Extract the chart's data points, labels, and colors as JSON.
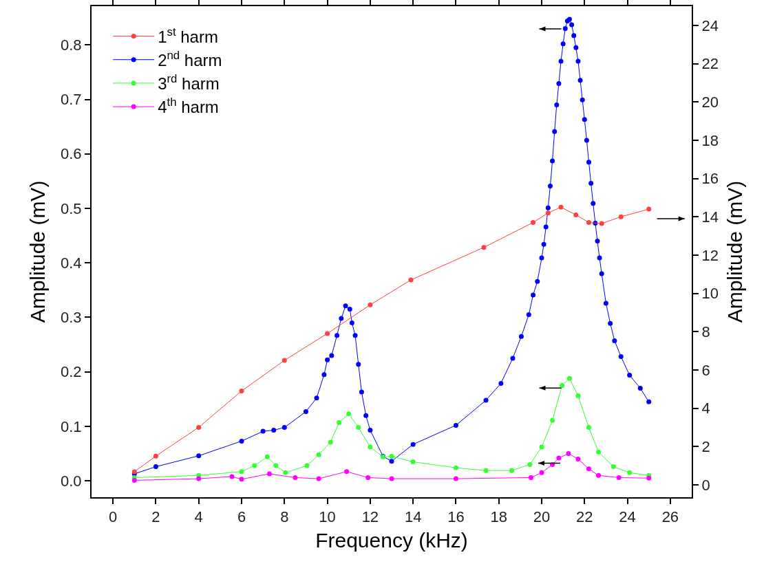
{
  "chart_data": {
    "type": "line",
    "xlabel": "Frequency (kHz)",
    "ylabel": "Amplitude (mV)",
    "y2label": "Amplitude (mV)",
    "xlim": [
      -1,
      27
    ],
    "xticks": [
      0,
      2,
      4,
      6,
      8,
      10,
      12,
      14,
      16,
      18,
      20,
      22,
      24,
      26
    ],
    "ylim": [
      -0.03,
      0.871
    ],
    "yticks": [
      {
        "value": 0,
        "label": "0.0"
      },
      0.1,
      0.2,
      0.3,
      0.4,
      0.5,
      0.6,
      0.7,
      0.8
    ],
    "y2lim": [
      -0.65,
      25.0
    ],
    "y2ticks": [
      0,
      2,
      4,
      6,
      8,
      10,
      12,
      14,
      16,
      18,
      20,
      22,
      24
    ],
    "grid": false,
    "legend": "top left",
    "marker": "circle",
    "line_style": "solid",
    "series": [
      {
        "name": "1$^{st}$ harm",
        "color": "#ff4040",
        "axis": "y2",
        "x": [
          1,
          2,
          4,
          6,
          8,
          10,
          12,
          13.9,
          17.3,
          19.6,
          20.3,
          20.9,
          21.6,
          22.2,
          22.8,
          23.7,
          25
        ],
        "values": [
          0.68,
          1.5,
          3.0,
          4.9,
          6.5,
          7.9,
          9.4,
          10.7,
          12.4,
          13.7,
          14.2,
          14.5,
          14.1,
          13.7,
          13.65,
          14.0,
          14.4
        ]
      },
      {
        "name": "2$^{nd}$ harm",
        "color": "#0000ff",
        "x": [
          1,
          2,
          4,
          6,
          7,
          7.5,
          8,
          9,
          9.5,
          9.85,
          10,
          10.2,
          10.45,
          10.65,
          10.85,
          11.05,
          11.15,
          11.3,
          11.45,
          11.6,
          11.8,
          12,
          12.6,
          13,
          14,
          16,
          17.4,
          18.1,
          18.65,
          19.05,
          19.4,
          19.6,
          19.8,
          20,
          20.1,
          20.2,
          20.3,
          20.4,
          20.5,
          20.6,
          20.7,
          20.8,
          20.9,
          21,
          21.1,
          21.2,
          21.3,
          21.4,
          21.5,
          21.6,
          21.7,
          21.8,
          21.9,
          22,
          22.1,
          22.2,
          22.3,
          22.4,
          22.5,
          22.6,
          22.7,
          22.8,
          23,
          23.2,
          23.4,
          23.7,
          24.1,
          24.6,
          25
        ],
        "values": [
          0.013,
          0.026,
          0.046,
          0.073,
          0.091,
          0.093,
          0.098,
          0.127,
          0.152,
          0.195,
          0.222,
          0.23,
          0.267,
          0.298,
          0.321,
          0.315,
          0.29,
          0.267,
          0.214,
          0.163,
          0.12,
          0.093,
          0.045,
          0.036,
          0.067,
          0.102,
          0.148,
          0.179,
          0.225,
          0.265,
          0.305,
          0.341,
          0.366,
          0.409,
          0.434,
          0.466,
          0.501,
          0.541,
          0.587,
          0.641,
          0.69,
          0.729,
          0.77,
          0.802,
          0.83,
          0.844,
          0.847,
          0.837,
          0.817,
          0.795,
          0.77,
          0.735,
          0.699,
          0.663,
          0.625,
          0.585,
          0.546,
          0.509,
          0.473,
          0.44,
          0.409,
          0.38,
          0.326,
          0.289,
          0.257,
          0.228,
          0.194,
          0.17,
          0.145
        ]
      },
      {
        "name": "3$^{rd}$ harm",
        "color": "#33ff33",
        "x": [
          1,
          4,
          6,
          6.6,
          7.2,
          7.6,
          8.05,
          9.05,
          9.6,
          10.15,
          10.55,
          11,
          11.45,
          12,
          12.6,
          13,
          14,
          16,
          17.4,
          18.6,
          19.45,
          20,
          20.5,
          20.95,
          21.3,
          21.7,
          22.2,
          22.65,
          23.35,
          24.1,
          25
        ],
        "values": [
          0.006,
          0.01,
          0.017,
          0.028,
          0.044,
          0.028,
          0.015,
          0.028,
          0.048,
          0.071,
          0.107,
          0.123,
          0.098,
          0.062,
          0.044,
          0.045,
          0.035,
          0.024,
          0.019,
          0.019,
          0.03,
          0.062,
          0.111,
          0.175,
          0.188,
          0.156,
          0.098,
          0.053,
          0.026,
          0.015,
          0.01
        ]
      },
      {
        "name": "4$^{th}$ harm",
        "color": "#ff00ff",
        "x": [
          1,
          4,
          5.55,
          6,
          7.3,
          8.5,
          9.6,
          10.9,
          11.9,
          13,
          16,
          19.5,
          20,
          20.5,
          20.8,
          21.25,
          21.7,
          22.2,
          22.65,
          23.6,
          25
        ],
        "values": [
          0.001,
          0.004,
          0.008,
          0.003,
          0.013,
          0.006,
          0.004,
          0.017,
          0.006,
          0.004,
          0.004,
          0.006,
          0.015,
          0.03,
          0.042,
          0.05,
          0.04,
          0.022,
          0.01,
          0.006,
          0.005
        ]
      }
    ]
  }
}
